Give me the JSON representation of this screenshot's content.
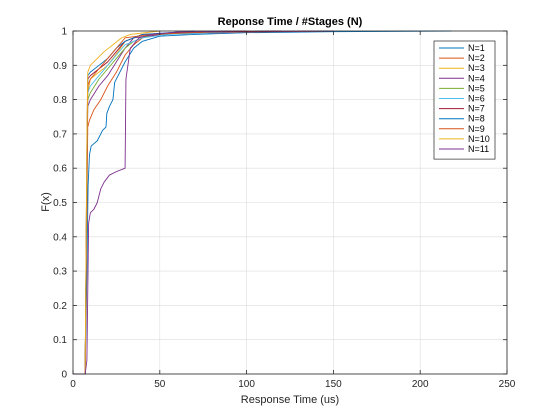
{
  "chart_data": {
    "type": "line",
    "title": "Reponse Time / #Stages (N)",
    "xlabel": "Response Time (us)",
    "ylabel": "F(x)",
    "xlim": [
      0,
      250
    ],
    "ylim": [
      0,
      1
    ],
    "xticks": [
      0,
      50,
      100,
      150,
      200,
      250
    ],
    "yticks": [
      0,
      0.1,
      0.2,
      0.3,
      0.4,
      0.5,
      0.6,
      0.7,
      0.8,
      0.9,
      1
    ],
    "grid": true,
    "legend_position": "top-right",
    "series": [
      {
        "name": "N=1",
        "color": "#0072BD",
        "points": [
          [
            0,
            0
          ],
          [
            7,
            0
          ],
          [
            8,
            0.3
          ],
          [
            8.7,
            0.55
          ],
          [
            9.5,
            0.64
          ],
          [
            10.5,
            0.665
          ],
          [
            14,
            0.68
          ],
          [
            17,
            0.71
          ],
          [
            19,
            0.72
          ],
          [
            19.5,
            0.76
          ],
          [
            21,
            0.78
          ],
          [
            23,
            0.8
          ],
          [
            24,
            0.85
          ],
          [
            27,
            0.88
          ],
          [
            30,
            0.91
          ],
          [
            35,
            0.95
          ],
          [
            40,
            0.97
          ],
          [
            50,
            0.985
          ],
          [
            70,
            0.99
          ],
          [
            100,
            0.995
          ],
          [
            150,
            0.998
          ],
          [
            218,
            1
          ]
        ]
      },
      {
        "name": "N=2",
        "color": "#D95319",
        "points": [
          [
            0,
            0
          ],
          [
            7,
            0
          ],
          [
            8,
            0.5
          ],
          [
            8.5,
            0.72
          ],
          [
            9.5,
            0.74
          ],
          [
            12,
            0.77
          ],
          [
            16,
            0.8
          ],
          [
            20,
            0.84
          ],
          [
            25,
            0.88
          ],
          [
            30,
            0.93
          ],
          [
            35,
            0.96
          ],
          [
            40,
            0.98
          ],
          [
            50,
            0.99
          ],
          [
            100,
            0.997
          ],
          [
            150,
            1
          ]
        ]
      },
      {
        "name": "N=3",
        "color": "#EDB120",
        "points": [
          [
            0,
            0
          ],
          [
            7,
            0
          ],
          [
            8,
            0.6
          ],
          [
            8.5,
            0.82
          ],
          [
            10,
            0.86
          ],
          [
            15,
            0.88
          ],
          [
            20,
            0.9
          ],
          [
            23,
            0.92
          ],
          [
            26,
            0.94
          ],
          [
            30,
            0.97
          ],
          [
            40,
            0.99
          ],
          [
            60,
            0.995
          ],
          [
            120,
            1
          ]
        ]
      },
      {
        "name": "N=4",
        "color": "#7E2F8E",
        "points": [
          [
            0,
            0
          ],
          [
            7,
            0
          ],
          [
            8,
            0.55
          ],
          [
            8.5,
            0.78
          ],
          [
            10,
            0.8
          ],
          [
            15,
            0.84
          ],
          [
            20,
            0.87
          ],
          [
            25,
            0.91
          ],
          [
            30,
            0.95
          ],
          [
            35,
            0.98
          ],
          [
            50,
            0.99
          ],
          [
            100,
            0.998
          ],
          [
            150,
            1
          ]
        ]
      },
      {
        "name": "N=5",
        "color": "#77AC30",
        "points": [
          [
            0,
            0
          ],
          [
            7,
            0
          ],
          [
            8,
            0.6
          ],
          [
            8.5,
            0.8
          ],
          [
            10,
            0.82
          ],
          [
            15,
            0.86
          ],
          [
            20,
            0.89
          ],
          [
            25,
            0.92
          ],
          [
            30,
            0.95
          ],
          [
            35,
            0.97
          ],
          [
            45,
            0.99
          ],
          [
            100,
            1
          ]
        ]
      },
      {
        "name": "N=6",
        "color": "#4DBEEE",
        "points": [
          [
            0,
            0
          ],
          [
            7,
            0
          ],
          [
            8,
            0.62
          ],
          [
            8.5,
            0.82
          ],
          [
            10,
            0.84
          ],
          [
            15,
            0.87
          ],
          [
            20,
            0.9
          ],
          [
            25,
            0.93
          ],
          [
            30,
            0.96
          ],
          [
            40,
            0.98
          ],
          [
            55,
            0.99
          ],
          [
            110,
            1
          ]
        ]
      },
      {
        "name": "N=7",
        "color": "#A2142F",
        "points": [
          [
            0,
            0
          ],
          [
            7,
            0
          ],
          [
            8,
            0.65
          ],
          [
            8.5,
            0.86
          ],
          [
            10,
            0.87
          ],
          [
            15,
            0.89
          ],
          [
            20,
            0.91
          ],
          [
            25,
            0.94
          ],
          [
            30,
            0.97
          ],
          [
            40,
            0.99
          ],
          [
            60,
            0.995
          ],
          [
            120,
            1
          ]
        ]
      },
      {
        "name": "N=8",
        "color": "#0072BD",
        "points": [
          [
            0,
            0
          ],
          [
            7,
            0
          ],
          [
            8,
            0.66
          ],
          [
            8.5,
            0.87
          ],
          [
            10,
            0.88
          ],
          [
            15,
            0.9
          ],
          [
            20,
            0.92
          ],
          [
            25,
            0.95
          ],
          [
            30,
            0.97
          ],
          [
            40,
            0.99
          ],
          [
            70,
            1
          ]
        ]
      },
      {
        "name": "N=9",
        "color": "#D95319",
        "points": [
          [
            0,
            0
          ],
          [
            7,
            0
          ],
          [
            8,
            0.6
          ],
          [
            8.5,
            0.84
          ],
          [
            10,
            0.86
          ],
          [
            15,
            0.89
          ],
          [
            20,
            0.92
          ],
          [
            25,
            0.95
          ],
          [
            30,
            0.98
          ],
          [
            45,
            0.99
          ],
          [
            90,
            1
          ]
        ]
      },
      {
        "name": "N=10",
        "color": "#EDB120",
        "points": [
          [
            0,
            0
          ],
          [
            7,
            0
          ],
          [
            8,
            0.7
          ],
          [
            8.5,
            0.88
          ],
          [
            10,
            0.9
          ],
          [
            14,
            0.92
          ],
          [
            18,
            0.94
          ],
          [
            23,
            0.96
          ],
          [
            28,
            0.98
          ],
          [
            33,
            0.99
          ],
          [
            50,
            1
          ]
        ]
      },
      {
        "name": "N=11",
        "color": "#7E2F8E",
        "points": [
          [
            0,
            0
          ],
          [
            7,
            0
          ],
          [
            8,
            0.04
          ],
          [
            9,
            0.44
          ],
          [
            10,
            0.47
          ],
          [
            12,
            0.48
          ],
          [
            14,
            0.5
          ],
          [
            16,
            0.54
          ],
          [
            18,
            0.56
          ],
          [
            21,
            0.58
          ],
          [
            25,
            0.59
          ],
          [
            30,
            0.6
          ],
          [
            30.5,
            0.86
          ],
          [
            33,
            0.95
          ],
          [
            38,
            0.98
          ],
          [
            45,
            0.99
          ],
          [
            60,
            0.997
          ],
          [
            100,
            1
          ]
        ]
      }
    ]
  }
}
